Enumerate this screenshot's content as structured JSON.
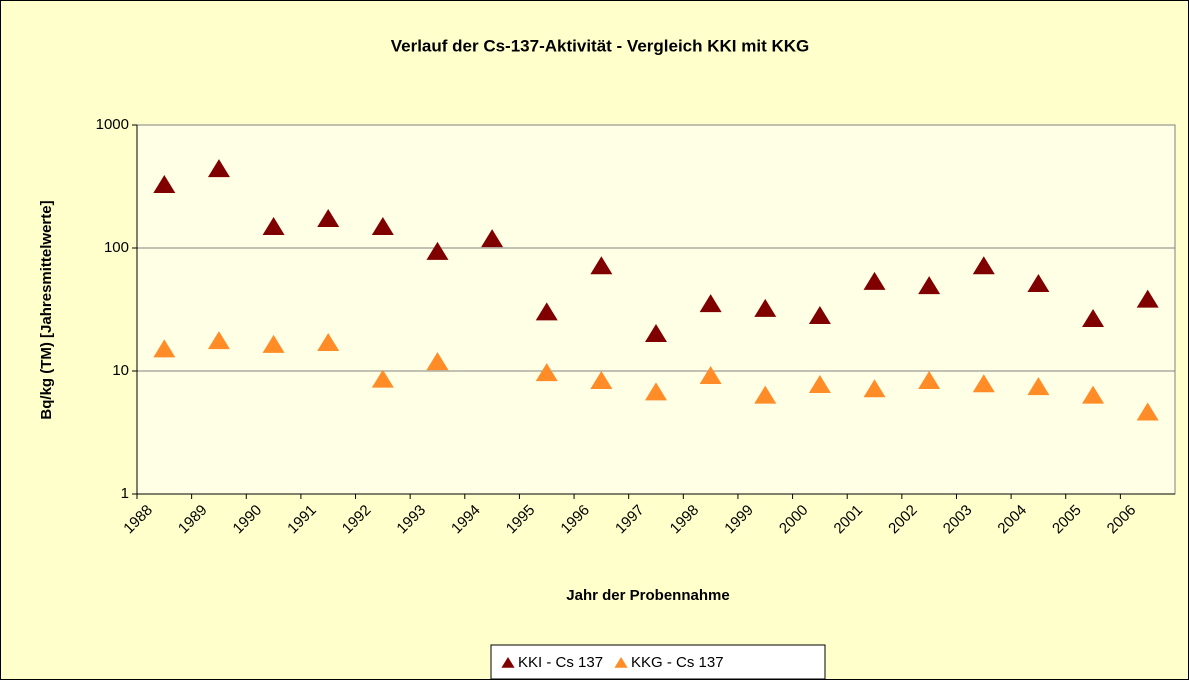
{
  "chart_data": {
    "type": "scatter",
    "title": "Verlauf der Cs-137-Aktivität - Vergleich KKI mit KKG",
    "x_label": "Jahr der Probennahme",
    "y_label": "Bq/kg (TM) [Jahresmittelwerte]",
    "categories": [
      "1988",
      "1989",
      "1990",
      "1991",
      "1992",
      "1993",
      "1994",
      "1995",
      "1996",
      "1997",
      "1998",
      "1999",
      "2000",
      "2001",
      "2002",
      "2003",
      "2004",
      "2005",
      "2006"
    ],
    "series": [
      {
        "name": "KKI - Cs 137",
        "color": "#800000",
        "values": [
          325,
          438,
          148,
          172,
          148,
          93,
          118,
          30,
          71,
          20,
          35,
          32,
          28,
          53,
          49,
          71,
          51,
          26.5,
          38
        ]
      },
      {
        "name": "KKG - Cs 137",
        "color": "#ff8c26",
        "values": [
          15,
          17.5,
          16.3,
          16.9,
          8.5,
          11.8,
          null,
          9.6,
          8.3,
          6.7,
          9.1,
          6.3,
          7.7,
          7.1,
          8.3,
          7.8,
          7.4,
          6.3,
          4.6
        ]
      }
    ],
    "ylim": [
      1,
      1000
    ],
    "yticks": [
      1,
      10,
      100,
      1000
    ],
    "log_scale": true,
    "grid": true,
    "legend": "bottom"
  }
}
